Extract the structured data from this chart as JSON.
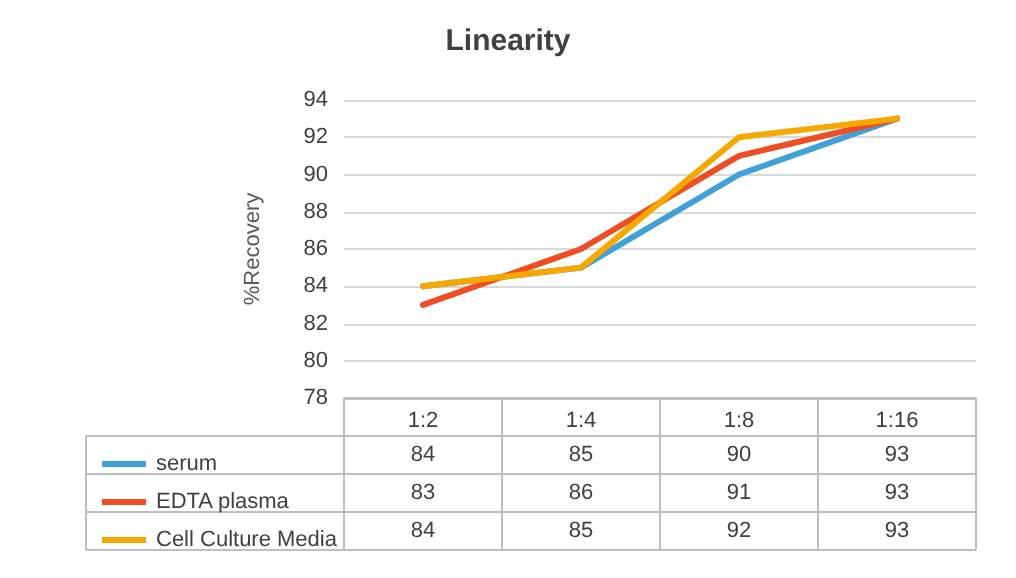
{
  "chart_data": {
    "type": "line",
    "title": "Linearity",
    "ylabel": "%Recovery",
    "categories": [
      "1:2",
      "1:4",
      "1:8",
      "1:16"
    ],
    "series": [
      {
        "name": "serum",
        "color": "#41a0d8",
        "values": [
          84,
          85,
          90,
          93
        ]
      },
      {
        "name": "EDTA plasma",
        "color": "#ef4e25",
        "values": [
          83,
          86,
          91,
          93
        ]
      },
      {
        "name": "Cell Culture Media",
        "color": "#f6a800",
        "values": [
          84,
          85,
          92,
          93
        ]
      }
    ],
    "ylim": [
      78,
      94
    ],
    "yticks": [
      78,
      80,
      82,
      84,
      86,
      88,
      90,
      92,
      94
    ],
    "grid": "y",
    "legend": "bottom",
    "data_labels": true,
    "marker": "none",
    "line_style": "solid"
  }
}
